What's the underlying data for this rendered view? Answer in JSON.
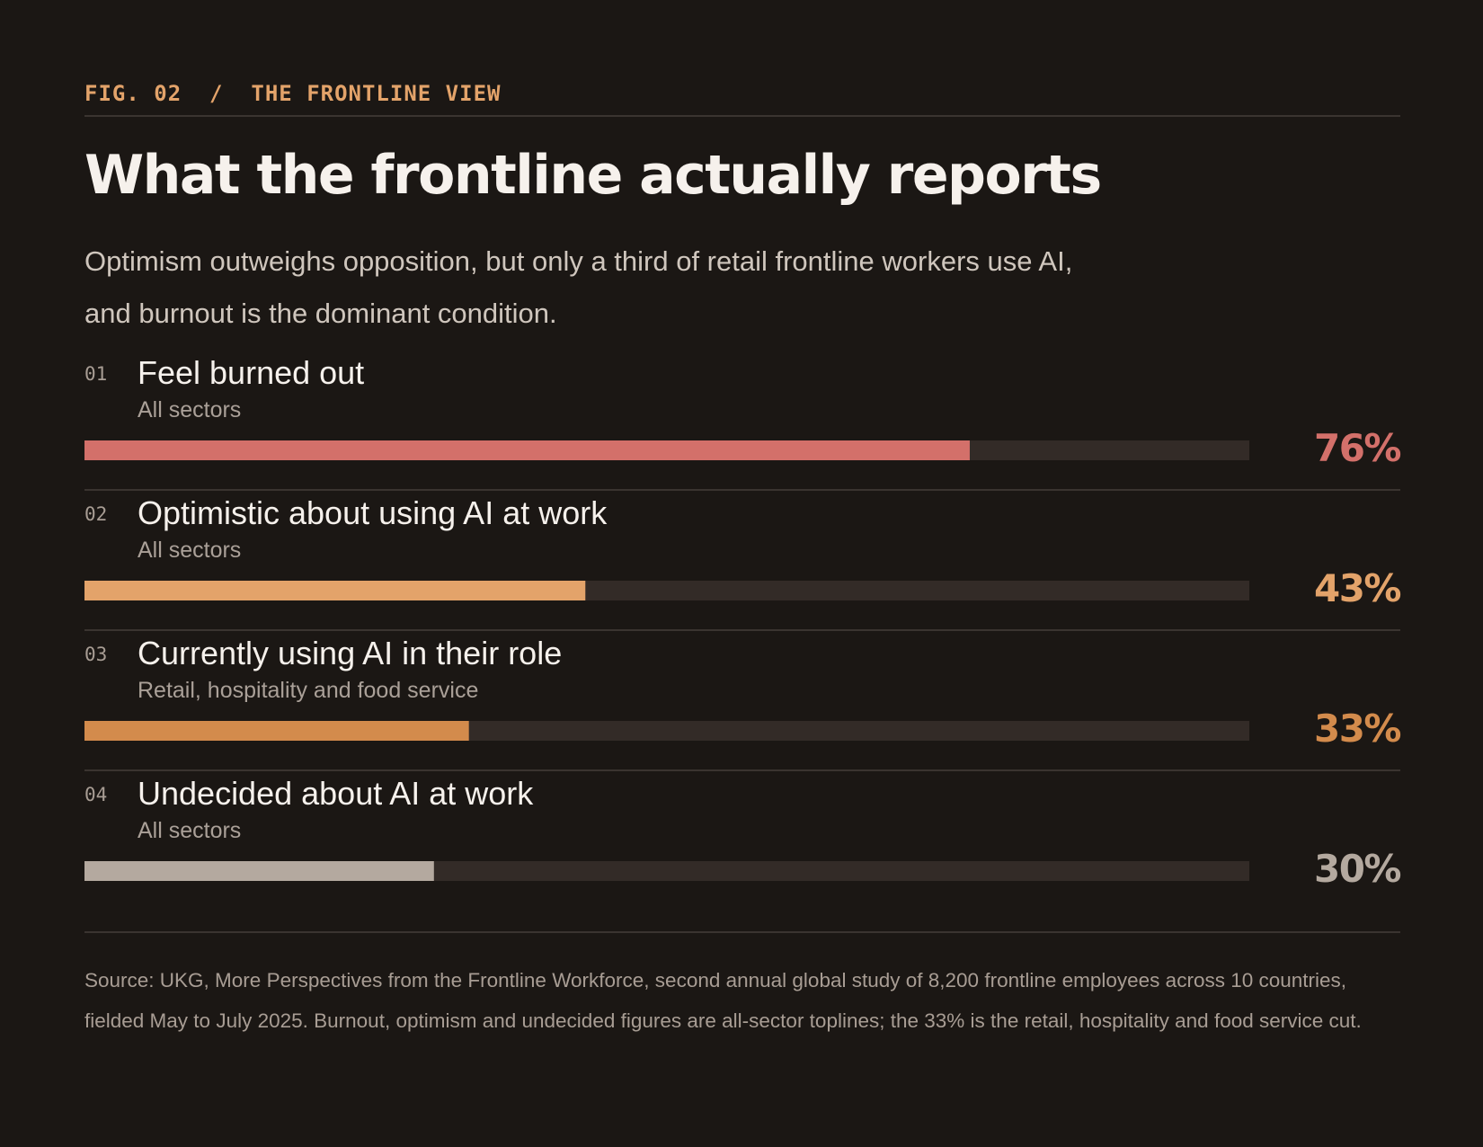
{
  "header": {
    "kicker": "FIG. 02  /  THE FRONTLINE VIEW",
    "title": "What the frontline actually reports",
    "subtitle": "Optimism outweighs opposition, but only a third of retail frontline workers use AI, and burnout is the dominant condition."
  },
  "colors": {
    "background": "#1b1714",
    "track": "#332b27",
    "burnout": "#d3706a",
    "optimistic": "#e3a36a",
    "using": "#d38b4c",
    "undecided": "#b4a99f"
  },
  "chart_data": {
    "type": "bar",
    "orientation": "horizontal",
    "xlim": [
      0,
      100
    ],
    "unit": "%",
    "grid": false,
    "rows": [
      {
        "index": "01",
        "label": "Feel burned out",
        "sublabel": "All sectors",
        "value": 76,
        "value_label": "76%",
        "color": "#d3706a"
      },
      {
        "index": "02",
        "label": "Optimistic about using AI at work",
        "sublabel": "All sectors",
        "value": 43,
        "value_label": "43%",
        "color": "#e3a36a"
      },
      {
        "index": "03",
        "label": "Currently using AI in their role",
        "sublabel": "Retail, hospitality and food service",
        "value": 33,
        "value_label": "33%",
        "color": "#d38b4c"
      },
      {
        "index": "04",
        "label": "Undecided about AI at work",
        "sublabel": "All sectors",
        "value": 30,
        "value_label": "30%",
        "color": "#b4a99f"
      }
    ]
  },
  "footer": {
    "source": "Source: UKG, More Perspectives from the Frontline Workforce, second annual global study of 8,200 frontline employees across 10 countries, fielded May to July 2025. Burnout, optimism and undecided figures are all-sector toplines; the 33% is the retail, hospitality and food service cut."
  }
}
